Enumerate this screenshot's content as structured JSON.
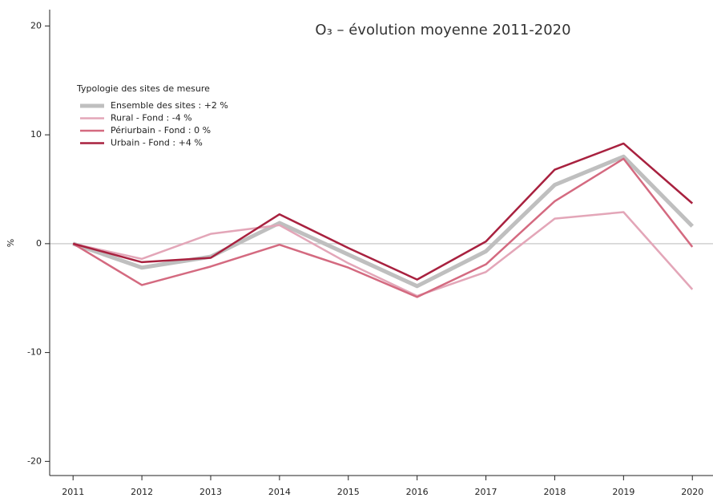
{
  "chart_data": {
    "type": "line",
    "title": "O₃ – évolution moyenne 2011-2020",
    "y_label": "%",
    "legend_title": "Typologie des sites de mesure",
    "legend": "upper left",
    "x": [
      2011,
      2012,
      2013,
      2014,
      2015,
      2016,
      2017,
      2018,
      2019,
      2020
    ],
    "xlim": [
      2010.66,
      2020.3
    ],
    "xticks": [
      2011,
      2012,
      2013,
      2014,
      2015,
      2016,
      2017,
      2018,
      2019,
      2020
    ],
    "ylim": [
      -21.3,
      21.5
    ],
    "yticks": [
      -20,
      -10,
      0,
      10,
      20
    ],
    "zero_line": true,
    "series": [
      {
        "name": "Ensemble des sites : +2 %",
        "color": "#bfbfbf",
        "width": 5,
        "values": [
          0,
          -2.2,
          -1.2,
          1.9,
          -1.0,
          -3.9,
          -0.7,
          5.4,
          8.0,
          1.6
        ]
      },
      {
        "name": "Rural - Fond : -4 %",
        "color": "#e3a6b8",
        "width": 2.5,
        "values": [
          0,
          -1.4,
          0.9,
          1.7,
          -1.8,
          -4.8,
          -2.6,
          2.3,
          2.9,
          -4.2
        ]
      },
      {
        "name": "Périurbain - Fond : 0 %",
        "color": "#d46a80",
        "width": 2.5,
        "values": [
          0,
          -3.8,
          -2.1,
          -0.1,
          -2.2,
          -4.9,
          -1.9,
          3.9,
          7.8,
          -0.3
        ]
      },
      {
        "name": "Urbain - Fond : +4 %",
        "color": "#a8213f",
        "width": 2.5,
        "values": [
          0,
          -1.7,
          -1.3,
          2.7,
          -0.4,
          -3.3,
          0.2,
          6.8,
          9.2,
          3.7
        ]
      }
    ]
  }
}
